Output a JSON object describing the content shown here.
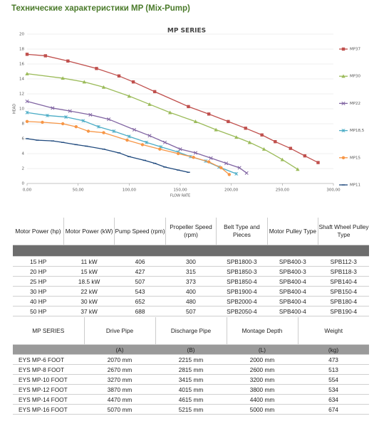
{
  "header": {
    "title": "Технические характеристики MP (Mix-Pump)"
  },
  "chart_data": {
    "type": "line",
    "title": "MP SERIES",
    "xlabel": "FLOW RATE",
    "ylabel": "HEAD",
    "xlim": [
      0,
      300
    ],
    "ylim": [
      0,
      20
    ],
    "xticks": [
      {
        "value": 0,
        "label": "0,00"
      },
      {
        "value": 50,
        "label": "50,00"
      },
      {
        "value": 100,
        "label": "100,00"
      },
      {
        "value": 150,
        "label": "150,00"
      },
      {
        "value": 200,
        "label": "200,00"
      },
      {
        "value": 250,
        "label": "250,00"
      },
      {
        "value": 300,
        "label": "300,00"
      }
    ],
    "yticks": [
      0,
      2,
      4,
      6,
      8,
      10,
      12,
      14,
      16,
      18,
      20
    ],
    "grid": true,
    "series": [
      {
        "name": "MP37",
        "color": "#c0504d",
        "marker": "square",
        "x": [
          0,
          18,
          40,
          68,
          90,
          104,
          125,
          158,
          178,
          197,
          214,
          230,
          243,
          258,
          272,
          285
        ],
        "values": [
          17.3,
          17.1,
          16.4,
          15.4,
          14.4,
          13.6,
          12.3,
          10.3,
          9.3,
          8.3,
          7.4,
          6.5,
          5.6,
          4.7,
          3.7,
          2.8
        ]
      },
      {
        "name": "MP30",
        "color": "#9bbb59",
        "marker": "triangle",
        "x": [
          0,
          35,
          56,
          75,
          100,
          120,
          140,
          165,
          185,
          205,
          218,
          232,
          250,
          265
        ],
        "values": [
          14.7,
          14.1,
          13.6,
          12.9,
          11.7,
          10.6,
          9.5,
          8.3,
          7.2,
          6.2,
          5.5,
          4.6,
          3.2,
          1.9
        ]
      },
      {
        "name": "MP22",
        "color": "#8064a2",
        "marker": "cross",
        "x": [
          0,
          25,
          42,
          62,
          80,
          105,
          120,
          135,
          150,
          165,
          180,
          195,
          208,
          215
        ],
        "values": [
          11,
          10.1,
          9.7,
          9.2,
          8.6,
          7.2,
          6.4,
          5.5,
          4.6,
          4.1,
          3.4,
          2.7,
          2.1,
          1.4
        ]
      },
      {
        "name": "MP18,5",
        "color": "#4bacc6",
        "marker": "star",
        "x": [
          0,
          20,
          38,
          55,
          70,
          85,
          100,
          117,
          131,
          148,
          160,
          175,
          188,
          205
        ],
        "values": [
          9.5,
          9.1,
          8.9,
          8.4,
          7.6,
          7,
          6.3,
          5.5,
          4.9,
          4.2,
          3.6,
          3,
          2.2,
          1.3
        ]
      },
      {
        "name": "MP15",
        "color": "#f79646",
        "marker": "circle",
        "x": [
          0,
          15,
          35,
          48,
          60,
          75,
          98,
          113,
          130,
          148,
          163,
          178,
          190,
          198
        ],
        "values": [
          8.3,
          8.2,
          8,
          7.6,
          7,
          6.8,
          5.8,
          5.2,
          4.6,
          4,
          3.5,
          2.9,
          2.1,
          1.2
        ]
      },
      {
        "name": "MP11",
        "color": "#1f497d",
        "marker": "dash",
        "x": [
          0,
          10,
          25,
          35,
          48,
          58,
          75,
          90,
          100,
          115,
          125,
          135,
          148,
          158
        ],
        "values": [
          6,
          5.8,
          5.7,
          5.5,
          5.2,
          5,
          4.6,
          4.1,
          3.6,
          3.1,
          2.7,
          2.2,
          1.8,
          1.5
        ]
      }
    ]
  },
  "table1": {
    "headers": [
      "Motor Power (hp)",
      "Motor Power (kW)",
      "Pump Speed (rpm)",
      "Propeller Speed (rpm)",
      "Belt Type and Pieces",
      "Motor Pulley Type",
      "Shaft Wheel Pulley Type"
    ],
    "rows": [
      [
        "15 HP",
        "11 kW",
        "406",
        "300",
        "SPB1800-3",
        "SPB400-3",
        "SPB112-3"
      ],
      [
        "20 HP",
        "15 kW",
        "427",
        "315",
        "SPB1850-3",
        "SPB400-3",
        "SPB118-3"
      ],
      [
        "25 HP",
        "18.5 kW",
        "507",
        "373",
        "SPB1850-4",
        "SPB400-4",
        "SPB140-4"
      ],
      [
        "30 HP",
        "22 kW",
        "543",
        "400",
        "SPB1900-4",
        "SPB400-4",
        "SPB150-4"
      ],
      [
        "40 HP",
        "30 kW",
        "652",
        "480",
        "SPB2000-4",
        "SPB400-4",
        "SPB180-4"
      ],
      [
        "50 HP",
        "37 kW",
        "688",
        "507",
        "SPB2050-4",
        "SPB400-4",
        "SPB190-4"
      ]
    ]
  },
  "table2": {
    "headers": [
      "MP SERIES",
      "Drive Pipe",
      "Discharge Pipe",
      "Montage Depth",
      "Weight"
    ],
    "units": [
      "(A)",
      "(B)",
      "(L)",
      "(kg)"
    ],
    "rows": [
      [
        "EYS MP-6 FOOT",
        "2070 mm",
        "2215 mm",
        "2000 mm",
        "473"
      ],
      [
        "EYS MP-8 FOOT",
        "2670 mm",
        "2815 mm",
        "2600 mm",
        "513"
      ],
      [
        "EYS MP-10 FOOT",
        "3270 mm",
        "3415 mm",
        "3200 mm",
        "554"
      ],
      [
        "EYS MP-12 FOOT",
        "3870 mm",
        "4015 mm",
        "3800 mm",
        "534"
      ],
      [
        "EYS MP-14 FOOT",
        "4470 mm",
        "4615 mm",
        "4400 mm",
        "634"
      ],
      [
        "EYS MP-16 FOOT",
        "5070 mm",
        "5215 mm",
        "5000 mm",
        "674"
      ]
    ]
  }
}
